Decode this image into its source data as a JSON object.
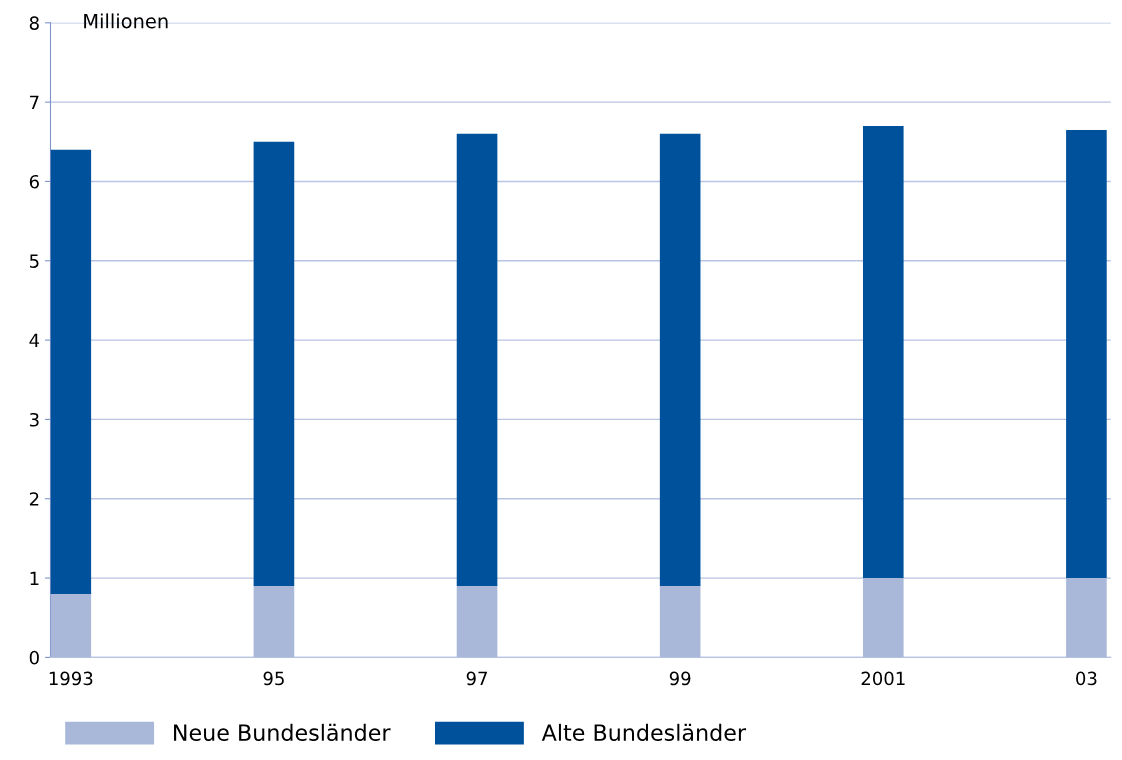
{
  "chart_data": {
    "type": "bar",
    "stacked": true,
    "ylabel": "Millionen",
    "categories": [
      "1993",
      "95",
      "97",
      "99",
      "2001",
      "03"
    ],
    "series": [
      {
        "name": "Neue Bundesländer",
        "color": "#a9b7d9",
        "values": [
          0.8,
          0.9,
          0.9,
          0.9,
          1.0,
          1.0
        ]
      },
      {
        "name": "Alte Bundesländer",
        "color": "#00519c",
        "values": [
          5.6,
          5.6,
          5.7,
          5.7,
          5.7,
          5.65
        ]
      }
    ],
    "ylim": [
      0,
      8
    ],
    "yticks": [
      0,
      1,
      2,
      3,
      4,
      5,
      6,
      7,
      8
    ],
    "grid": "y",
    "legend": "bottom"
  }
}
